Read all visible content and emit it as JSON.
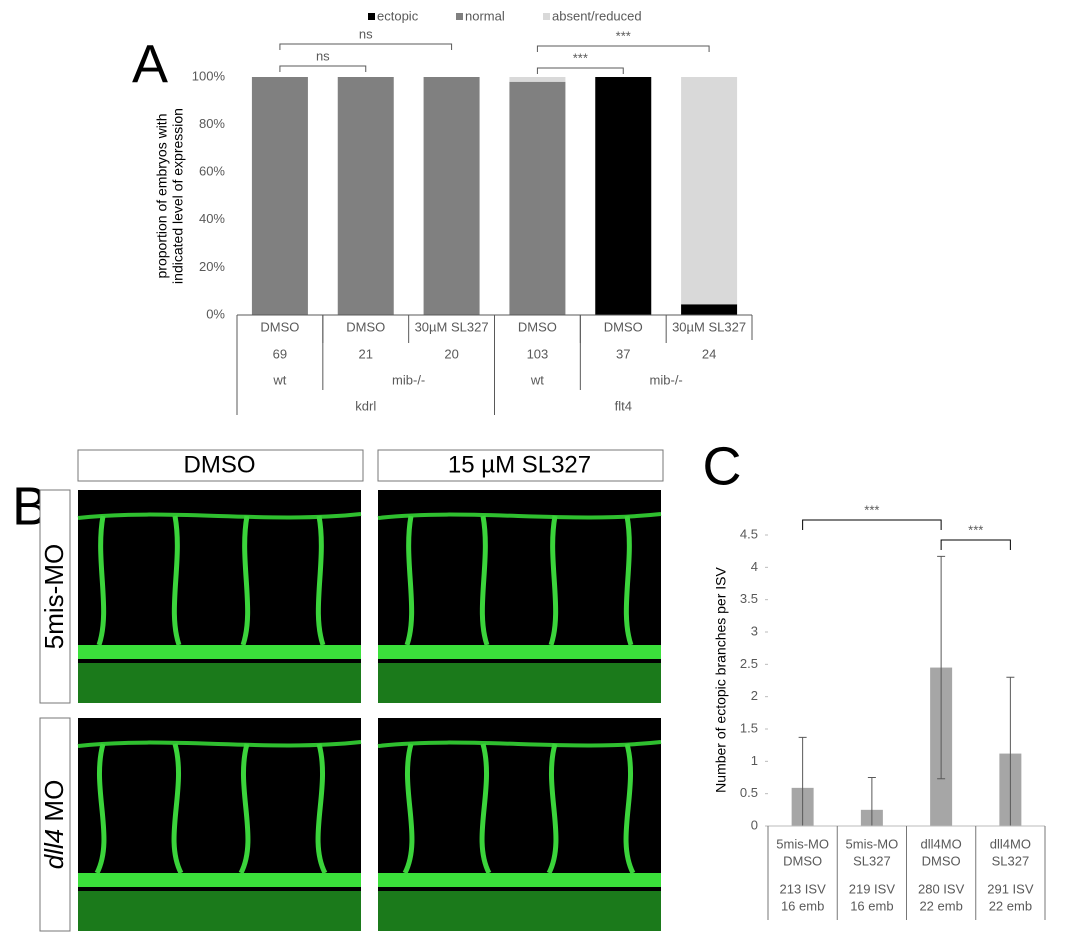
{
  "chart_data": [
    {
      "type": "stacked_bar",
      "panel_label": "A",
      "y_label": [
        "proportion of embryos with",
        "indicated level of expression"
      ],
      "categories": [
        "DMSO",
        "DMSO",
        "30µM SL327",
        "DMSO",
        "DMSO",
        "30µM SL327"
      ],
      "counts": [
        69,
        21,
        20,
        103,
        37,
        24
      ],
      "category_groups": [
        [
          {
            "label": "wt",
            "size": 1
          },
          {
            "label": "mib-/-",
            "size": 2
          },
          {
            "label": "wt",
            "size": 1
          },
          {
            "label": "mib-/-",
            "size": 2
          }
        ],
        [
          {
            "label": "kdrl",
            "size": 3
          },
          {
            "label": "flt4",
            "size": 3
          }
        ]
      ],
      "series": [
        {
          "name": "ectopic",
          "color": "#000000",
          "values": [
            0,
            0,
            0,
            0,
            100,
            4.5
          ]
        },
        {
          "name": "normal",
          "color": "#808080",
          "values": [
            100,
            100,
            100,
            98,
            0,
            0
          ]
        },
        {
          "name": "absent/reduced",
          "color": "#d9d9d9",
          "values": [
            0,
            0,
            0,
            2,
            0,
            95.5
          ]
        }
      ],
      "ylim": [
        0,
        100
      ],
      "yticks": [
        {
          "value": 0,
          "label": "0%"
        },
        {
          "value": 20,
          "label": "20%"
        },
        {
          "value": 40,
          "label": "40%"
        },
        {
          "value": 60,
          "label": "60%"
        },
        {
          "value": 80,
          "label": "80%"
        },
        {
          "value": 100,
          "label": "100%"
        }
      ],
      "legend": "top",
      "brackets": [
        {
          "from": 0,
          "to": 1,
          "label": "ns"
        },
        {
          "from": 0,
          "to": 2,
          "label": "ns"
        },
        {
          "from": 3,
          "to": 4,
          "label": "***"
        },
        {
          "from": 3,
          "to": 5,
          "label": "***"
        }
      ]
    },
    {
      "type": "bar",
      "panel_label": "C",
      "y_label": "Number of ectopic branches per ISV",
      "categories": [
        [
          "5mis-MO",
          "DMSO"
        ],
        [
          "5mis-MO",
          "SL327"
        ],
        [
          "dll4MO",
          "DMSO"
        ],
        [
          "dll4MO",
          "SL327"
        ]
      ],
      "details": [
        [
          "213 ISV",
          "16 emb"
        ],
        [
          "219 ISV",
          "16 emb"
        ],
        [
          "280 ISV",
          "22 emb"
        ],
        [
          "291 ISV",
          "22 emb"
        ]
      ],
      "values": [
        0.59,
        0.25,
        2.45,
        1.12
      ],
      "errors": [
        0.78,
        0.5,
        1.72,
        1.18
      ],
      "color": "#a6a6a6",
      "ylim": [
        0,
        4.5
      ],
      "yticks": [
        0,
        0.5,
        1,
        1.5,
        2,
        2.5,
        3,
        3.5,
        4,
        4.5
      ],
      "brackets": [
        {
          "from": 0,
          "to": 2,
          "label": "***"
        },
        {
          "from": 2,
          "to": 3,
          "label": "***"
        }
      ]
    }
  ],
  "images": {
    "panel_label": "B",
    "columns": [
      "DMSO",
      "15 µM SL327"
    ],
    "rows": [
      {
        "label": "5mis-MO"
      },
      {
        "label_italic": "dll4",
        "label": " MO"
      }
    ]
  }
}
